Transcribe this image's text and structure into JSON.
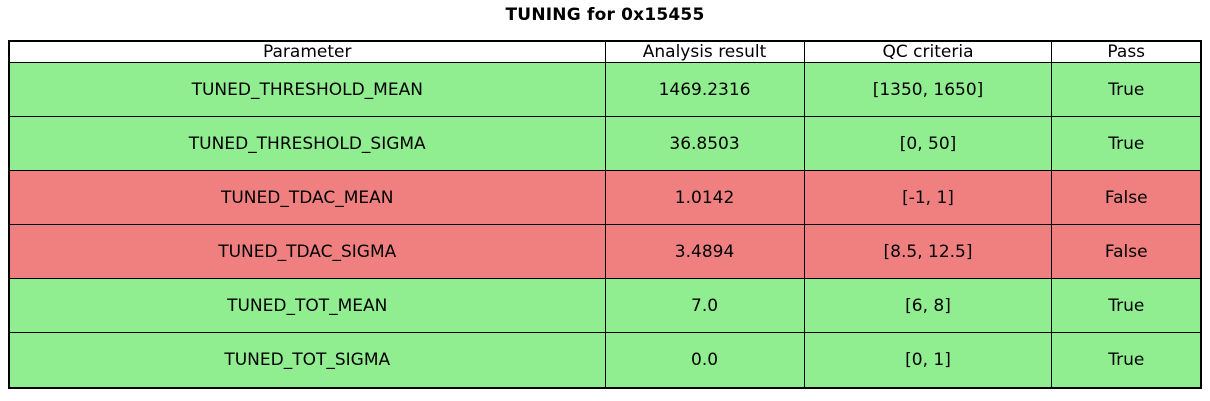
{
  "title": "TUNING for 0x15455",
  "colors": {
    "pass_bg": "#90EE90",
    "fail_bg": "#F08080",
    "header_bg": "#FFFFFF",
    "border": "#000000",
    "text": "#000000"
  },
  "chart_data": {
    "type": "table",
    "title": "TUNING for 0x15455",
    "columns": [
      "Parameter",
      "Analysis result",
      "QC criteria",
      "Pass"
    ],
    "rows": [
      {
        "cells": [
          "TUNED_THRESHOLD_MEAN",
          "1469.2316",
          "[1350, 1650]",
          "True"
        ],
        "status": "pass"
      },
      {
        "cells": [
          "TUNED_THRESHOLD_SIGMA",
          "36.8503",
          "[0, 50]",
          "True"
        ],
        "status": "pass"
      },
      {
        "cells": [
          "TUNED_TDAC_MEAN",
          "1.0142",
          "[-1, 1]",
          "False"
        ],
        "status": "fail"
      },
      {
        "cells": [
          "TUNED_TDAC_SIGMA",
          "3.4894",
          "[8.5, 12.5]",
          "False"
        ],
        "status": "fail"
      },
      {
        "cells": [
          "TUNED_TOT_MEAN",
          "7.0",
          "[6, 8]",
          "True"
        ],
        "status": "pass"
      },
      {
        "cells": [
          "TUNED_TOT_SIGMA",
          "0.0",
          "[0, 1]",
          "True"
        ],
        "status": "pass"
      }
    ]
  }
}
